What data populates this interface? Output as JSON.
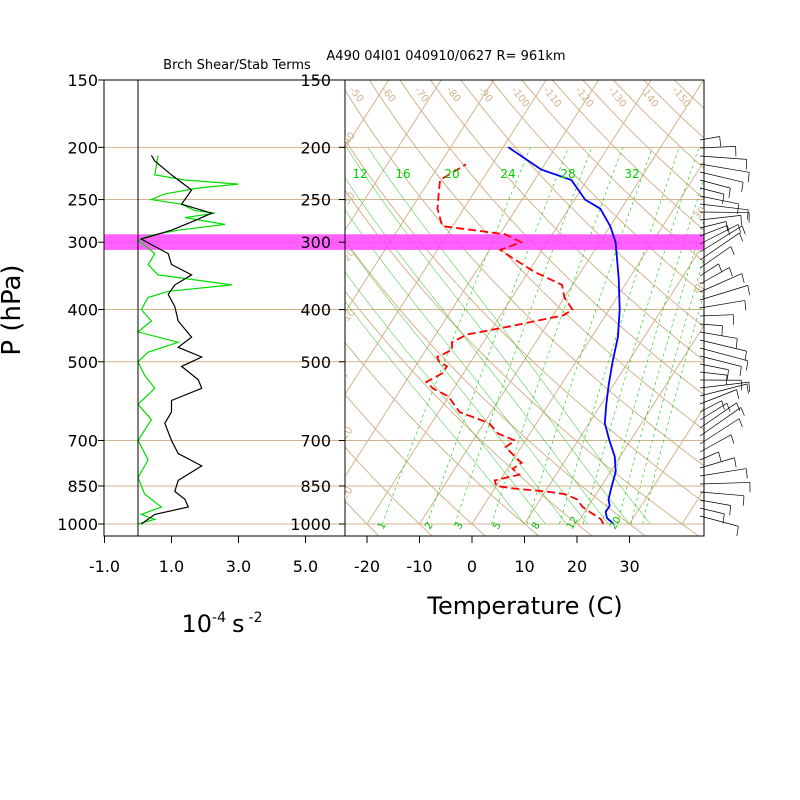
{
  "page": {
    "left_title": "Brch Shear/Stab Terms",
    "right_title": "A490 04I01 040910/0627 R= 961km",
    "y_axis_label": "P (hPa)",
    "left_x_label_base": "10",
    "left_x_label_exp": "-4",
    "left_x_label_unit": "s",
    "left_x_label_unit_exp": "-2",
    "right_x_label": "Temperature (C)"
  },
  "colors": {
    "grid": "#d2b48c",
    "temperature": "#0000ff",
    "dewpoint": "#ff0000",
    "shear": "#00dd00",
    "stability": "#000000",
    "highlight": "#ff44ff",
    "mixing_ratio": "#00d000"
  },
  "chart_data": [
    {
      "type": "line",
      "name": "shear-stability-panel",
      "title": "Brch Shear/Stab Terms",
      "xlabel": "10^-4 s^-2",
      "ylabel": "P (hPa)",
      "xlim": [
        -1.0,
        5.5
      ],
      "x_ticks": [
        "-1.0",
        "1.0",
        "3.0",
        "5.0"
      ],
      "x_tick_values": [
        -1.0,
        1.0,
        3.0,
        5.0
      ],
      "y_ticks": [
        150,
        200,
        250,
        300,
        400,
        500,
        700,
        850,
        1000
      ],
      "ylim": [
        1000,
        150
      ],
      "y_scale": "log",
      "series": [
        {
          "key": "shear",
          "color": "#00dd00",
          "points": [
            [
              0.6,
              207
            ],
            [
              0.5,
              225
            ],
            [
              1.4,
              230
            ],
            [
              3.0,
              234
            ],
            [
              1.8,
              238
            ],
            [
              0.8,
              244
            ],
            [
              0.4,
              250
            ],
            [
              1.3,
              255
            ],
            [
              1.7,
              262
            ],
            [
              2.3,
              265
            ],
            [
              1.4,
              270
            ],
            [
              2.6,
              278
            ],
            [
              1.2,
              285
            ],
            [
              0.3,
              292
            ],
            [
              0.0,
              298
            ],
            [
              0.2,
              304
            ],
            [
              0.5,
              315
            ],
            [
              0.3,
              330
            ],
            [
              0.6,
              345
            ],
            [
              2.8,
              360
            ],
            [
              0.9,
              370
            ],
            [
              0.3,
              380
            ],
            [
              0.1,
              400
            ],
            [
              0.4,
              420
            ],
            [
              0.0,
              440
            ],
            [
              1.2,
              460
            ],
            [
              0.3,
              480
            ],
            [
              0.0,
              500
            ],
            [
              0.2,
              530
            ],
            [
              0.5,
              560
            ],
            [
              0.0,
              600
            ],
            [
              0.4,
              640
            ],
            [
              0.0,
              700
            ],
            [
              0.3,
              760
            ],
            [
              0.0,
              820
            ],
            [
              0.2,
              880
            ],
            [
              0.7,
              930
            ],
            [
              0.1,
              960
            ],
            [
              0.5,
              980
            ],
            [
              0.0,
              1000
            ]
          ]
        },
        {
          "key": "stability",
          "color": "#000000",
          "points": [
            [
              0.4,
              207
            ],
            [
              0.5,
              212
            ],
            [
              1.0,
              225
            ],
            [
              1.6,
              240
            ],
            [
              1.3,
              255
            ],
            [
              2.2,
              265
            ],
            [
              1.6,
              275
            ],
            [
              1.0,
              285
            ],
            [
              0.1,
              296
            ],
            [
              0.4,
              303
            ],
            [
              0.9,
              315
            ],
            [
              1.0,
              330
            ],
            [
              1.6,
              345
            ],
            [
              1.1,
              360
            ],
            [
              0.9,
              375
            ],
            [
              1.1,
              395
            ],
            [
              1.2,
              420
            ],
            [
              1.6,
              450
            ],
            [
              1.2,
              470
            ],
            [
              1.9,
              490
            ],
            [
              1.3,
              510
            ],
            [
              1.8,
              540
            ],
            [
              1.9,
              560
            ],
            [
              1.0,
              590
            ],
            [
              1.0,
              620
            ],
            [
              0.8,
              650
            ],
            [
              1.0,
              700
            ],
            [
              1.2,
              740
            ],
            [
              1.9,
              780
            ],
            [
              1.2,
              830
            ],
            [
              1.1,
              870
            ],
            [
              1.4,
              900
            ],
            [
              1.5,
              930
            ],
            [
              0.5,
              960
            ],
            [
              0.1,
              1000
            ]
          ]
        }
      ],
      "highlight_band": [
        290,
        310
      ]
    },
    {
      "type": "line",
      "name": "skew-t-panel",
      "title": "A490 04I01 040910/0627 R= 961km",
      "xlabel": "Temperature (C)",
      "ylabel": "P (hPa)",
      "y_scale": "log",
      "ylim": [
        1000,
        150
      ],
      "x_ticks": [
        "-20",
        "-10",
        "0",
        "10",
        "20",
        "30"
      ],
      "x_tick_values": [
        -20,
        -10,
        0,
        10,
        20,
        30
      ],
      "y_ticks": [
        150,
        200,
        250,
        300,
        400,
        500,
        700,
        850,
        1000
      ],
      "isotherm_labels": [
        "-50",
        "-60",
        "-70",
        "-80",
        "-90",
        "-100",
        "-110",
        "-120",
        "-130",
        "-140",
        "-150"
      ],
      "dry_adiabat_labels": [
        "-40",
        "-30",
        "-20",
        "-10",
        "0",
        "10",
        "20",
        "30",
        "40"
      ],
      "mixing_ratio_labels": [
        "12",
        "16",
        "20",
        "24",
        "28",
        "32"
      ],
      "saturated_adiabat_labels": [
        "1",
        "2",
        "3",
        "5",
        "8",
        "12",
        "20"
      ],
      "series": [
        {
          "key": "temperature",
          "color": "#0000ff",
          "points": [
            [
              27,
              1000
            ],
            [
              25,
              975
            ],
            [
              24,
              950
            ],
            [
              24,
              925
            ],
            [
              23,
              900
            ],
            [
              22,
              850
            ],
            [
              21,
              800
            ],
            [
              19,
              750
            ],
            [
              16,
              700
            ],
            [
              13,
              650
            ],
            [
              11,
              600
            ],
            [
              9,
              550
            ],
            [
              7,
              500
            ],
            [
              5,
              450
            ],
            [
              2,
              400
            ],
            [
              -2,
              350
            ],
            [
              -7,
              300
            ],
            [
              -10,
              280
            ],
            [
              -14,
              260
            ],
            [
              -18,
              250
            ],
            [
              -23,
              230
            ],
            [
              -30,
              220
            ],
            [
              -39,
              200
            ]
          ]
        },
        {
          "key": "dewpoint",
          "color": "#ff0000",
          "points": [
            [
              25,
              1000
            ],
            [
              24,
              980
            ],
            [
              22,
              960
            ],
            [
              19,
              930
            ],
            [
              17,
              900
            ],
            [
              14,
              880
            ],
            [
              10,
              870
            ],
            [
              4,
              860
            ],
            [
              0,
              850
            ],
            [
              -1,
              830
            ],
            [
              3,
              810
            ],
            [
              1,
              790
            ],
            [
              2,
              770
            ],
            [
              0,
              750
            ],
            [
              -3,
              720
            ],
            [
              -2,
              700
            ],
            [
              -6,
              680
            ],
            [
              -9,
              650
            ],
            [
              -16,
              620
            ],
            [
              -18,
              600
            ],
            [
              -20,
              580
            ],
            [
              -24,
              560
            ],
            [
              -26,
              545
            ],
            [
              -24,
              525
            ],
            [
              -24,
              510
            ],
            [
              -26,
              500
            ],
            [
              -27,
              490
            ],
            [
              -25,
              475
            ],
            [
              -26,
              460
            ],
            [
              -24,
              445
            ],
            [
              -17,
              430
            ],
            [
              -8,
              410
            ],
            [
              -7,
              400
            ],
            [
              -10,
              380
            ],
            [
              -12,
              360
            ],
            [
              -19,
              340
            ],
            [
              -25,
              320
            ],
            [
              -28,
              310
            ],
            [
              -25,
              300
            ],
            [
              -29,
              290
            ],
            [
              -42,
              280
            ],
            [
              -45,
              260
            ],
            [
              -47,
              240
            ],
            [
              -48,
              230
            ],
            [
              -46,
              220
            ],
            [
              -45,
              215
            ]
          ]
        }
      ],
      "highlight_band": [
        290,
        310
      ]
    }
  ]
}
